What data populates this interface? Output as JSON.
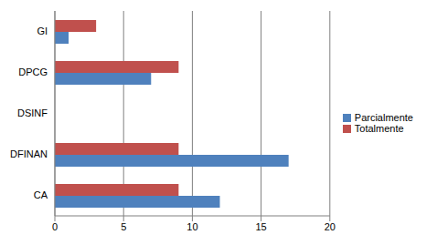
{
  "chart_data": {
    "type": "bar",
    "orientation": "horizontal",
    "categories": [
      "GI",
      "DPCG",
      "DSINF",
      "DFINAN",
      "CA"
    ],
    "series": [
      {
        "name": "Totalmente",
        "color": "#c0504d",
        "values": [
          3,
          9,
          0,
          9,
          9
        ]
      },
      {
        "name": "Parcialmente",
        "color": "#4f81bd",
        "values": [
          1,
          7,
          0,
          17,
          12
        ]
      }
    ],
    "xlim": [
      0,
      20
    ],
    "xticks": [
      0,
      5,
      10,
      15,
      20
    ],
    "grid": true,
    "legend": "right"
  }
}
